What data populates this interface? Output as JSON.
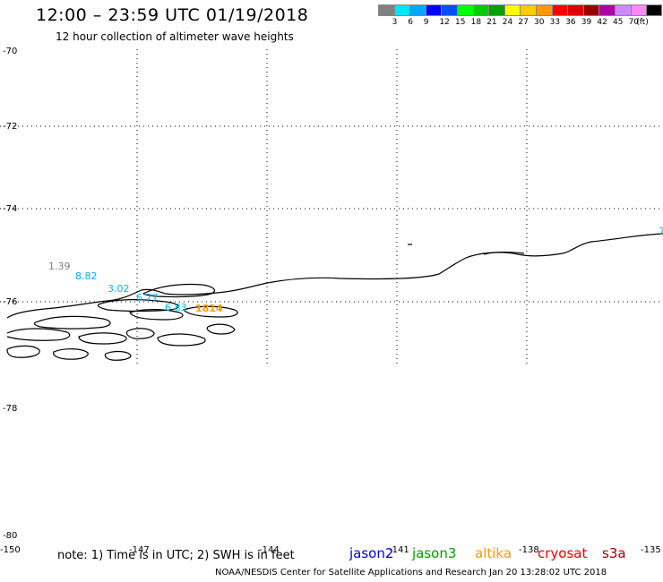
{
  "title": "12:00 – 23:59 UTC 01/19/2018",
  "subtitle": "12 hour collection of altimeter wave heights",
  "scale": {
    "colors": [
      "#808080",
      "#00e5ff",
      "#00a8ff",
      "#0000ff",
      "#0050ff",
      "#00ff00",
      "#00cc00",
      "#00a000",
      "#ffff00",
      "#ffcc00",
      "#ff9900",
      "#ff0000",
      "#dd0000",
      "#990000",
      "#aa00aa",
      "#cc88ff",
      "#ff88ff",
      "#000000"
    ],
    "labels": [
      "3",
      "6",
      "9",
      "12",
      "15",
      "18",
      "21",
      "24",
      "27",
      "30",
      "33",
      "36",
      "39",
      "42",
      "45",
      "70"
    ],
    "unit": "(ft)"
  },
  "axes": {
    "lat_labels": [
      "-70",
      "-72",
      "-74",
      "-76",
      "-78",
      "-80"
    ],
    "lon_labels": [
      "-150",
      "-147",
      "-144",
      "-141",
      "-138",
      "-135"
    ]
  },
  "readings": [
    {
      "text": "1.39",
      "color": "#808080"
    },
    {
      "text": "8.82",
      "color": "#00aaff"
    },
    {
      "text": "3.02",
      "color": "#00bbee"
    },
    {
      "text": "6.77",
      "color": "#00bbee"
    },
    {
      "text": "6.83",
      "color": "#00bbee"
    },
    {
      "text": "1814",
      "color": "#ff9900"
    },
    {
      "text": "7",
      "color": "#00bbee"
    }
  ],
  "note": "note: 1) Time is in UTC; 2) SWH is in feet",
  "satellites": [
    {
      "name": "jason2",
      "color": "#0000dd"
    },
    {
      "name": "jason3",
      "color": "#00a000"
    },
    {
      "name": "altika",
      "color": "#ff9900"
    },
    {
      "name": "cryosat",
      "color": "#ee0000"
    },
    {
      "name": "s3a",
      "color": "#990000"
    }
  ],
  "footer": "NOAA/NESDIS Center for Satellite Applications and Research    Jan 20 13:28:02 UTC 2018"
}
